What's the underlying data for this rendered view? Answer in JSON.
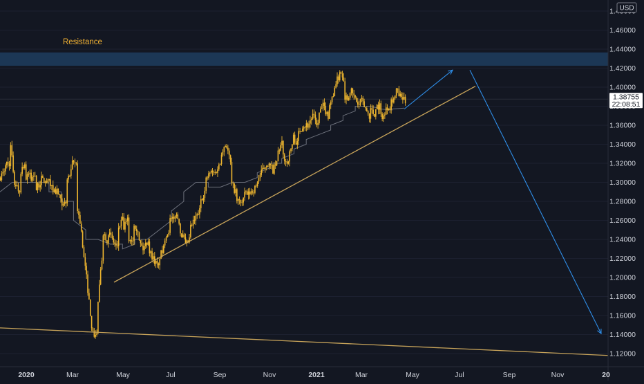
{
  "chart_data": {
    "type": "candlestick",
    "instrument_currency": "USD",
    "resistance_label": "Resistance",
    "resistance_zone": [
      1.4225,
      1.4365
    ],
    "y_range": [
      1.1125,
      1.4895
    ],
    "price_ticks": [
      1.48,
      1.46,
      1.44,
      1.42,
      1.4,
      1.38,
      1.36,
      1.34,
      1.32,
      1.3,
      1.28,
      1.26,
      1.24,
      1.22,
      1.2,
      1.18,
      1.16,
      1.14,
      1.12
    ],
    "price_tick_labels": [
      "1.48000",
      "1.46000",
      "1.44000",
      "1.42000",
      "1.40000",
      "1.38000",
      "1.36000",
      "1.34000",
      "1.32000",
      "1.30000",
      "1.28000",
      "1.26000",
      "1.24000",
      "1.22000",
      "1.20000",
      "1.18000",
      "1.16000",
      "1.14000",
      "1.12000"
    ],
    "time_labels": [
      {
        "label": "2020",
        "bold": true
      },
      {
        "label": "Mar",
        "bold": false
      },
      {
        "label": "May",
        "bold": false
      },
      {
        "label": "Jul",
        "bold": false
      },
      {
        "label": "Sep",
        "bold": false
      },
      {
        "label": "Nov",
        "bold": false
      },
      {
        "label": "2021",
        "bold": true
      },
      {
        "label": "Mar",
        "bold": false
      },
      {
        "label": "May",
        "bold": false
      },
      {
        "label": "Jul",
        "bold": false
      },
      {
        "label": "Sep",
        "bold": false
      },
      {
        "label": "Nov",
        "bold": false
      },
      {
        "label": "20",
        "bold": true
      }
    ],
    "current_price": "1.38755",
    "current_price_value": 1.3875,
    "countdown": "22:08:51",
    "price_path": [
      [
        1.305,
        1.31
      ],
      [
        1.32,
        1.32
      ],
      [
        1.35,
        1.3
      ],
      [
        1.3,
        1.29
      ],
      [
        1.31,
        1.32
      ],
      [
        1.3,
        1.31
      ],
      [
        1.3,
        1.31
      ],
      [
        1.29,
        1.3
      ],
      [
        1.305,
        1.3
      ],
      [
        1.3,
        1.3
      ],
      [
        1.295,
        1.29
      ],
      [
        1.295,
        1.28
      ],
      [
        1.27,
        1.28
      ],
      [
        1.3,
        1.31
      ],
      [
        1.32,
        1.32
      ],
      [
        1.28,
        1.25
      ],
      [
        1.24,
        1.2
      ],
      [
        1.2,
        1.15
      ],
      [
        1.14,
        1.14
      ],
      [
        1.16,
        1.22
      ],
      [
        1.25,
        1.24
      ],
      [
        1.25,
        1.24
      ],
      [
        1.24,
        1.23
      ],
      [
        1.25,
        1.26
      ],
      [
        1.25,
        1.26
      ],
      [
        1.24,
        1.24
      ],
      [
        1.26,
        1.25
      ],
      [
        1.24,
        1.23
      ],
      [
        1.23,
        1.24
      ],
      [
        1.23,
        1.22
      ],
      [
        1.22,
        1.21
      ],
      [
        1.22,
        1.23
      ],
      [
        1.24,
        1.25
      ],
      [
        1.26,
        1.26
      ],
      [
        1.27,
        1.26
      ],
      [
        1.25,
        1.24
      ],
      [
        1.23,
        1.24
      ],
      [
        1.25,
        1.26
      ],
      [
        1.26,
        1.27
      ],
      [
        1.28,
        1.29
      ],
      [
        1.3,
        1.31
      ],
      [
        1.31,
        1.31
      ],
      [
        1.31,
        1.32
      ],
      [
        1.33,
        1.34
      ],
      [
        1.345,
        1.32
      ],
      [
        1.3,
        1.29
      ],
      [
        1.28,
        1.28
      ],
      [
        1.275,
        1.29
      ],
      [
        1.285,
        1.29
      ],
      [
        1.29,
        1.295
      ],
      [
        1.3,
        1.31
      ],
      [
        1.31,
        1.32
      ],
      [
        1.32,
        1.315
      ],
      [
        1.31,
        1.32
      ],
      [
        1.33,
        1.34
      ],
      [
        1.33,
        1.32
      ],
      [
        1.32,
        1.34
      ],
      [
        1.35,
        1.34
      ],
      [
        1.35,
        1.36
      ],
      [
        1.36,
        1.36
      ],
      [
        1.36,
        1.37
      ],
      [
        1.37,
        1.36
      ],
      [
        1.37,
        1.38
      ],
      [
        1.38,
        1.37
      ],
      [
        1.38,
        1.39
      ],
      [
        1.4,
        1.41
      ],
      [
        1.42,
        1.41
      ],
      [
        1.39,
        1.39
      ],
      [
        1.4,
        1.39
      ],
      [
        1.39,
        1.38
      ],
      [
        1.39,
        1.38
      ],
      [
        1.38,
        1.37
      ],
      [
        1.38,
        1.37
      ],
      [
        1.38,
        1.38
      ],
      [
        1.37,
        1.37
      ],
      [
        1.38,
        1.38
      ],
      [
        1.385,
        1.39
      ],
      [
        1.4,
        1.39
      ],
      [
        1.39,
        1.385
      ]
    ],
    "ma_path": [
      [
        1.29,
        1.3
      ],
      [
        1.3,
        1.3
      ],
      [
        1.3,
        1.3
      ],
      [
        1.3,
        1.3
      ],
      [
        1.29,
        1.29
      ],
      [
        1.28,
        1.28
      ],
      [
        1.26,
        1.25
      ],
      [
        1.24,
        1.24
      ],
      [
        1.24,
        1.235
      ],
      [
        1.235,
        1.235
      ],
      [
        1.23,
        1.235
      ],
      [
        1.24,
        1.24
      ],
      [
        1.24,
        1.25
      ],
      [
        1.25,
        1.26
      ],
      [
        1.27,
        1.28
      ],
      [
        1.29,
        1.3
      ],
      [
        1.3,
        1.3
      ],
      [
        1.295,
        1.295
      ],
      [
        1.295,
        1.3
      ],
      [
        1.3,
        1.3
      ],
      [
        1.3,
        1.305
      ],
      [
        1.31,
        1.315
      ],
      [
        1.32,
        1.32
      ],
      [
        1.325,
        1.33
      ],
      [
        1.335,
        1.34
      ],
      [
        1.345,
        1.35
      ],
      [
        1.35,
        1.355
      ],
      [
        1.36,
        1.365
      ],
      [
        1.37,
        1.375
      ],
      [
        1.38,
        1.38
      ],
      [
        1.38,
        1.378
      ],
      [
        1.377,
        1.376
      ],
      [
        1.377,
        1.378
      ]
    ],
    "support_trendline": [
      [
        1.195,
        1.401
      ]
    ],
    "lower_trendline": [
      [
        1.147,
        1.118
      ]
    ],
    "projection_up": [
      [
        1.377,
        1.418
      ]
    ],
    "projection_down": [
      [
        1.418,
        1.141
      ]
    ]
  }
}
